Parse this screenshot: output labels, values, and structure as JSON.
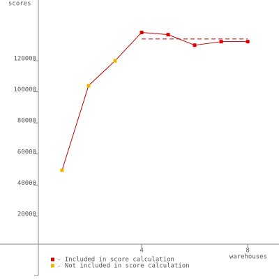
{
  "chart_data": {
    "type": "line",
    "y_label": "scores",
    "x_label": "warehouses",
    "x": [
      1,
      2,
      3,
      4,
      5,
      6,
      7,
      8
    ],
    "series": [
      {
        "name": "- Included in score calculation",
        "color": "#dd0000",
        "values": [
          null,
          null,
          null,
          138200,
          136800,
          130000,
          132300,
          132300
        ]
      },
      {
        "name": "- Not included in score calculation",
        "color": "#f0b400",
        "values": [
          49500,
          104000,
          120000,
          null,
          null,
          null,
          null,
          null
        ]
      }
    ],
    "line_color": "#c00000",
    "score_line": {
      "value": 134000,
      "x": [
        4,
        8
      ],
      "color": "#c00000"
    },
    "xlim": [
      -1.34,
      9.18
    ],
    "ylim": [
      -20455,
      159091
    ],
    "xticks": [
      4,
      8
    ],
    "yticks": [
      20000,
      40000,
      60000,
      80000,
      100000,
      120000
    ]
  }
}
